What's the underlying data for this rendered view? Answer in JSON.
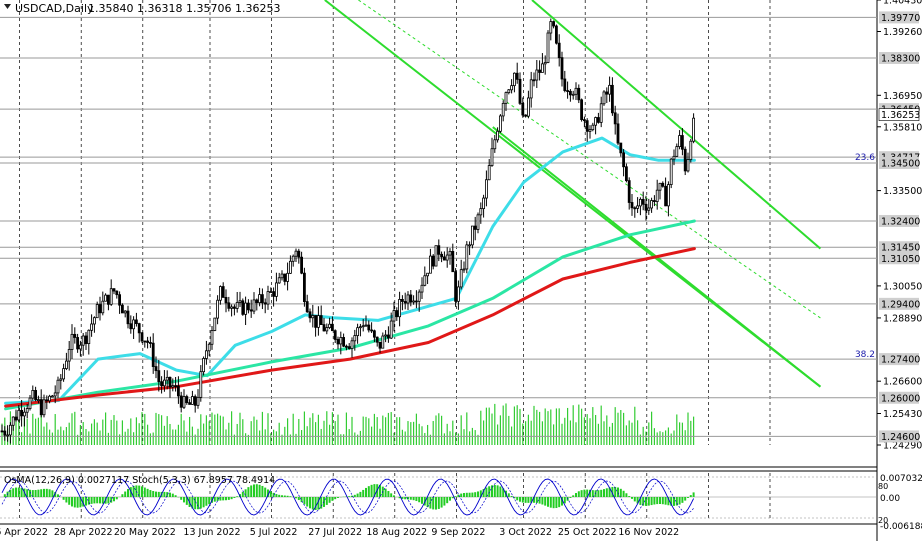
{
  "header": {
    "symbol": "USDCAD,Daily",
    "ohlc": "1.35840 1.36318 1.35706 1.36253"
  },
  "colors": {
    "candle": "#000000",
    "ema_fast": "#3ddde8",
    "ema_mid": "#2be6a4",
    "ema_slow": "#e01818",
    "channel": "#2edc2e",
    "volume": "#33cc33",
    "osc_hist": "#22cc22",
    "osc_line": "#0000cc",
    "level_line": "#999999"
  },
  "chart_data": [
    {
      "type": "candlestick",
      "title": "USDCAD,Daily",
      "ylim": [
        1.2429,
        1.404
      ],
      "x_tick_labels": [
        "6 Apr 2022",
        "28 Apr 2022",
        "20 May 2022",
        "13 Jun 2022",
        "5 Jul 2022",
        "27 Jul 2022",
        "18 Aug 2022",
        "9 Sep 2022",
        "3 Oct 2022",
        "25 Oct 2022",
        "16 Nov 2022"
      ],
      "y_tick_labels": [
        {
          "value": 1.404,
          "label": "1.40430"
        },
        {
          "value": 1.3926,
          "label": "1.39260"
        },
        {
          "value": 1.3695,
          "label": "1.36950"
        },
        {
          "value": 1.3581,
          "label": "1.35810"
        },
        {
          "value": 1.335,
          "label": "1.33500"
        },
        {
          "value": 1.3005,
          "label": "1.30050"
        },
        {
          "value": 1.2889,
          "label": "1.28890"
        },
        {
          "value": 1.266,
          "label": "1.26600"
        },
        {
          "value": 1.2543,
          "label": "1.25430"
        },
        {
          "value": 1.2429,
          "label": "1.24290"
        }
      ],
      "level_labels": [
        {
          "value": 1.3977,
          "label": "1.39770"
        },
        {
          "value": 1.383,
          "label": "1.38300"
        },
        {
          "value": 1.3645,
          "label": "1.36450"
        },
        {
          "value": 1.3625,
          "label": "1.36253",
          "current": true
        },
        {
          "value": 1.3471,
          "label": "1.34717"
        },
        {
          "value": 1.345,
          "label": "1.34500"
        },
        {
          "value": 1.324,
          "label": "1.32400"
        },
        {
          "value": 1.3145,
          "label": "1.31450"
        },
        {
          "value": 1.3105,
          "label": "1.31050"
        },
        {
          "value": 1.294,
          "label": "1.29400"
        },
        {
          "value": 1.274,
          "label": "1.27400"
        },
        {
          "value": 1.26,
          "label": "1.26000"
        },
        {
          "value": 1.246,
          "label": "1.24600"
        }
      ],
      "fib_labels": [
        {
          "value": 1.3471,
          "label": "23.6"
        },
        {
          "value": 1.2758,
          "label": "38.2"
        }
      ],
      "price_path": [
        {
          "date": "2022-04-01",
          "close": 1.248
        },
        {
          "date": "2022-04-06",
          "close": 1.2555
        },
        {
          "date": "2022-04-11",
          "close": 1.26
        },
        {
          "date": "2022-04-14",
          "close": 1.256
        },
        {
          "date": "2022-04-20",
          "close": 1.264
        },
        {
          "date": "2022-04-24",
          "close": 1.28
        },
        {
          "date": "2022-04-29",
          "close": 1.281
        },
        {
          "date": "2022-05-04",
          "close": 1.292
        },
        {
          "date": "2022-05-10",
          "close": 1.299
        },
        {
          "date": "2022-05-14",
          "close": 1.29
        },
        {
          "date": "2022-05-19",
          "close": 1.284
        },
        {
          "date": "2022-05-22",
          "close": 1.28
        },
        {
          "date": "2022-05-26",
          "close": 1.265
        },
        {
          "date": "2022-05-31",
          "close": 1.264
        },
        {
          "date": "2022-06-04",
          "close": 1.257
        },
        {
          "date": "2022-06-08",
          "close": 1.258
        },
        {
          "date": "2022-06-12",
          "close": 1.279
        },
        {
          "date": "2022-06-17",
          "close": 1.299
        },
        {
          "date": "2022-06-22",
          "close": 1.292
        },
        {
          "date": "2022-06-30",
          "close": 1.294
        },
        {
          "date": "2022-07-05",
          "close": 1.298
        },
        {
          "date": "2022-07-10",
          "close": 1.304
        },
        {
          "date": "2022-07-14",
          "close": 1.315
        },
        {
          "date": "2022-07-17",
          "close": 1.296
        },
        {
          "date": "2022-07-20",
          "close": 1.288
        },
        {
          "date": "2022-07-27",
          "close": 1.283
        },
        {
          "date": "2022-08-02",
          "close": 1.28
        },
        {
          "date": "2022-08-07",
          "close": 1.288
        },
        {
          "date": "2022-08-12",
          "close": 1.278
        },
        {
          "date": "2022-08-16",
          "close": 1.285
        },
        {
          "date": "2022-08-21",
          "close": 1.296
        },
        {
          "date": "2022-08-26",
          "close": 1.298
        },
        {
          "date": "2022-08-30",
          "close": 1.308
        },
        {
          "date": "2022-09-03",
          "close": 1.314
        },
        {
          "date": "2022-09-07",
          "close": 1.31
        },
        {
          "date": "2022-09-09",
          "close": 1.295
        },
        {
          "date": "2022-09-13",
          "close": 1.315
        },
        {
          "date": "2022-09-18",
          "close": 1.328
        },
        {
          "date": "2022-09-22",
          "close": 1.35
        },
        {
          "date": "2022-09-26",
          "close": 1.37
        },
        {
          "date": "2022-09-30",
          "close": 1.378
        },
        {
          "date": "2022-10-03",
          "close": 1.358
        },
        {
          "date": "2022-10-06",
          "close": 1.375
        },
        {
          "date": "2022-10-10",
          "close": 1.38
        },
        {
          "date": "2022-10-13",
          "close": 1.396
        },
        {
          "date": "2022-10-17",
          "close": 1.374
        },
        {
          "date": "2022-10-21",
          "close": 1.372
        },
        {
          "date": "2022-10-24",
          "close": 1.362
        },
        {
          "date": "2022-10-28",
          "close": 1.356
        },
        {
          "date": "2022-10-31",
          "close": 1.367
        },
        {
          "date": "2022-11-03",
          "close": 1.372
        },
        {
          "date": "2022-11-05",
          "close": 1.354
        },
        {
          "date": "2022-11-08",
          "close": 1.342
        },
        {
          "date": "2022-11-11",
          "close": 1.326
        },
        {
          "date": "2022-11-14",
          "close": 1.332
        },
        {
          "date": "2022-11-17",
          "close": 1.329
        },
        {
          "date": "2022-11-20",
          "close": 1.336
        },
        {
          "date": "2022-11-23",
          "close": 1.332
        },
        {
          "date": "2022-11-25",
          "close": 1.347
        },
        {
          "date": "2022-11-28",
          "close": 1.354
        },
        {
          "date": "2022-11-30",
          "close": 1.342
        },
        {
          "date": "2022-12-02",
          "close": 1.358
        },
        {
          "date": "2022-12-03",
          "close": 1.3625
        }
      ],
      "series": [
        {
          "name": "EMA fast",
          "color_key": "ema_fast",
          "points": [
            {
              "date": "2022-04-01",
              "value": 1.258
            },
            {
              "date": "2022-04-20",
              "value": 1.259
            },
            {
              "date": "2022-05-04",
              "value": 1.274
            },
            {
              "date": "2022-05-19",
              "value": 1.276
            },
            {
              "date": "2022-06-01",
              "value": 1.27
            },
            {
              "date": "2022-06-12",
              "value": 1.268
            },
            {
              "date": "2022-06-22",
              "value": 1.279
            },
            {
              "date": "2022-07-05",
              "value": 1.284
            },
            {
              "date": "2022-07-17",
              "value": 1.29
            },
            {
              "date": "2022-07-27",
              "value": 1.289
            },
            {
              "date": "2022-08-12",
              "value": 1.288
            },
            {
              "date": "2022-08-26",
              "value": 1.292
            },
            {
              "date": "2022-09-09",
              "value": 1.296
            },
            {
              "date": "2022-09-22",
              "value": 1.322
            },
            {
              "date": "2022-10-03",
              "value": 1.338
            },
            {
              "date": "2022-10-17",
              "value": 1.349
            },
            {
              "date": "2022-10-31",
              "value": 1.354
            },
            {
              "date": "2022-11-10",
              "value": 1.348
            },
            {
              "date": "2022-11-20",
              "value": 1.346
            },
            {
              "date": "2022-12-03",
              "value": 1.346
            }
          ]
        },
        {
          "name": "EMA mid",
          "color_key": "ema_mid",
          "points": [
            {
              "date": "2022-04-01",
              "value": 1.256
            },
            {
              "date": "2022-05-04",
              "value": 1.262
            },
            {
              "date": "2022-06-01",
              "value": 1.266
            },
            {
              "date": "2022-07-05",
              "value": 1.273
            },
            {
              "date": "2022-08-02",
              "value": 1.278
            },
            {
              "date": "2022-08-30",
              "value": 1.286
            },
            {
              "date": "2022-09-22",
              "value": 1.296
            },
            {
              "date": "2022-10-17",
              "value": 1.311
            },
            {
              "date": "2022-11-10",
              "value": 1.319
            },
            {
              "date": "2022-12-03",
              "value": 1.324
            }
          ]
        },
        {
          "name": "EMA slow",
          "color_key": "ema_slow",
          "points": [
            {
              "date": "2022-04-01",
              "value": 1.257
            },
            {
              "date": "2022-05-04",
              "value": 1.261
            },
            {
              "date": "2022-06-01",
              "value": 1.264
            },
            {
              "date": "2022-07-05",
              "value": 1.27
            },
            {
              "date": "2022-08-02",
              "value": 1.274
            },
            {
              "date": "2022-08-30",
              "value": 1.28
            },
            {
              "date": "2022-09-22",
              "value": 1.29
            },
            {
              "date": "2022-10-17",
              "value": 1.303
            },
            {
              "date": "2022-11-10",
              "value": 1.309
            },
            {
              "date": "2022-12-03",
              "value": 1.314
            }
          ]
        }
      ],
      "channel_lines": [
        {
          "name": "upper",
          "from": {
            "date": "2022-10-06",
            "value": 1.404
          },
          "to": {
            "date": "2023-01-17",
            "value": 1.314
          }
        },
        {
          "name": "middle",
          "from": {
            "date": "2022-07-24",
            "value": 1.404
          },
          "to": {
            "date": "2023-01-17",
            "value": 1.264
          }
        },
        {
          "name": "lower",
          "from": {
            "date": "2022-09-22",
            "value": 1.358
          },
          "to": {
            "date": "2023-01-17",
            "value": 1.264
          }
        }
      ],
      "trend_line_dashed": {
        "from": {
          "date": "2022-08-05",
          "value": 1.404
        },
        "to": {
          "date": "2023-01-17",
          "value": 1.2889
        }
      },
      "volume_range": [
        0,
        100
      ]
    },
    {
      "type": "histogram",
      "title": "OsMA(12,26,9) 0.0027117  Stoch(5,3,3) 67.8957 78.4914",
      "tick_labels": [
        {
          "value": 0.0070329,
          "label": "0.0070329"
        },
        {
          "value": 0,
          "label": "0.00"
        },
        {
          "value": -0.0061888,
          "label": "-0.0061888"
        }
      ],
      "stoch_levels": [
        "80",
        "20"
      ],
      "stoch_mark": "0.00"
    }
  ]
}
